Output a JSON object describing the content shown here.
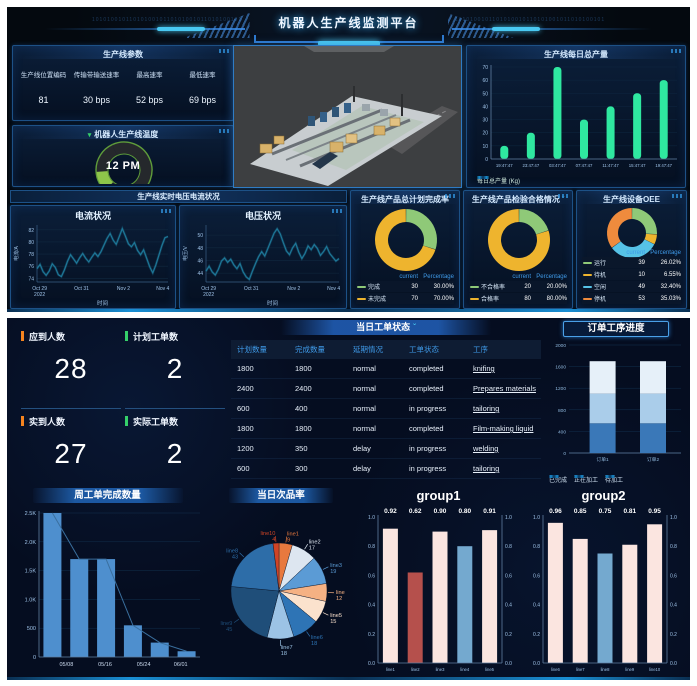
{
  "header": {
    "title": "机器人生产线监测平台",
    "binary_texture": "1010100101101010010110101001011010100101"
  },
  "top": {
    "params": {
      "title": "生产线参数",
      "items": [
        {
          "label": "生产线位置编码",
          "value": "81"
        },
        {
          "label": "传输带输送速率",
          "value": "30 bps"
        },
        {
          "label": "最高速率",
          "value": "52 bps"
        },
        {
          "label": "最低速率",
          "value": "69 bps"
        }
      ]
    },
    "rt_header": "生产线实时电压电流状况"
  },
  "bottom": {
    "stats": [
      {
        "label": "应到人数",
        "value": "28",
        "accent": "#f5841f"
      },
      {
        "label": "计划工单数",
        "value": "2",
        "accent": "#35d06a"
      },
      {
        "label": "实到人数",
        "value": "27",
        "accent": "#f5841f"
      },
      {
        "label": "实际工单数",
        "value": "2",
        "accent": "#35d06a"
      }
    ],
    "table": {
      "title": "当日工单状态",
      "dropdown_glyph": "ˇ",
      "columns": [
        "计划数量",
        "完成数量",
        "延期情况",
        "工单状态",
        "工序"
      ],
      "rows": [
        [
          "1800",
          "1800",
          "normal",
          "completed",
          "knifing"
        ],
        [
          "2400",
          "2400",
          "normal",
          "completed",
          "Prepares materials"
        ],
        [
          "600",
          "400",
          "normal",
          "in progress",
          "tailoring"
        ],
        [
          "1800",
          "1800",
          "normal",
          "completed",
          "Film-making liquid"
        ],
        [
          "1200",
          "350",
          "delay",
          "in progress",
          "welding"
        ],
        [
          "600",
          "300",
          "delay",
          "in progress",
          "tailoring"
        ]
      ]
    }
  },
  "chart_data": [
    {
      "id": "daily_output",
      "type": "bar",
      "title": "生产线每日总产量",
      "categories": [
        "19:47:47",
        "23:47:47",
        "03:47:47",
        "07:47:47",
        "11:47:47",
        "15:47:47",
        "19:47:47"
      ],
      "values": [
        10,
        20,
        70,
        30,
        40,
        50,
        60
      ],
      "ylim": [
        0,
        70
      ],
      "yticks": [
        0,
        10,
        20,
        30,
        40,
        50,
        60,
        70
      ],
      "bar_color": "#2fe8a0",
      "legend": [
        {
          "label": "每日总产量  (Kg)",
          "color": "#2fe8a0"
        }
      ]
    },
    {
      "id": "current_status",
      "type": "line",
      "title": "电流状况",
      "ylabel": "电流/A",
      "xlabel": "时间",
      "yticks": [
        74,
        76,
        78,
        80,
        82
      ],
      "ylim": [
        73.4,
        82.8
      ],
      "line_color": "#1e7899",
      "xticks": [
        {
          "f": 0.02,
          "label": "Oct 29",
          "label2": "2022"
        },
        {
          "f": 0.34,
          "label": "Oct 31"
        },
        {
          "f": 0.66,
          "label": "Nov 2"
        },
        {
          "f": 0.96,
          "label": "Nov 4"
        }
      ],
      "values": [
        75.6,
        76.3,
        75.1,
        74.5,
        75.2,
        76.4,
        75.8,
        74.6,
        74.3,
        75.4,
        76.8,
        77.9,
        77.2,
        76.5,
        77.4,
        78.1,
        77.3,
        76.7,
        77.5,
        78.2,
        77.6,
        78.4,
        79.5,
        80.6,
        81.4,
        80.3,
        79.6,
        80.9,
        82.2,
        81.0,
        79.7,
        79.2,
        79.9,
        78.6,
        77.9,
        78.7,
        77.3,
        75.9,
        74.9,
        76.2,
        77.8,
        79.4,
        80.7,
        80.9
      ]
    },
    {
      "id": "voltage_status",
      "type": "line",
      "title": "电压状况",
      "ylabel": "电压/V",
      "xlabel": "时间",
      "yticks": [
        44,
        46,
        48,
        50
      ],
      "ylim": [
        42.6,
        51.6
      ],
      "line_color": "#1e7899",
      "xticks": [
        {
          "f": 0.02,
          "label": "Oct 29",
          "label2": "2022"
        },
        {
          "f": 0.34,
          "label": "Oct 31"
        },
        {
          "f": 0.66,
          "label": "Nov 2"
        },
        {
          "f": 0.96,
          "label": "Nov 4"
        }
      ],
      "values": [
        44.3,
        45.1,
        44.2,
        43.7,
        44.6,
        45.9,
        46.4,
        45.7,
        46.2,
        45.3,
        44.7,
        45.5,
        44.2,
        43.4,
        43.0,
        44.3,
        45.5,
        46.6,
        47.4,
        46.7,
        47.9,
        49.1,
        50.3,
        51.0,
        50.2,
        48.8,
        47.5,
        46.9,
        48.0,
        48.7,
        47.3,
        46.3,
        47.1,
        48.3,
        47.7,
        48.5,
        47.9,
        46.8,
        47.4,
        48.2,
        47.1,
        46.5,
        45.9,
        46.3
      ]
    },
    {
      "id": "plan_completion",
      "type": "donut",
      "title": "生产线产品总计划完成率",
      "legend_headers": [
        "current",
        "Percentage"
      ],
      "slices": [
        {
          "name": "完成",
          "value": 30,
          "percentage": "30.00%",
          "color": "#8fc978"
        },
        {
          "name": "未完成",
          "value": 70,
          "percentage": "70.00%",
          "color": "#eeb42e"
        }
      ]
    },
    {
      "id": "qc_pass_rate",
      "type": "donut",
      "title": "生产线产品检验合格情况",
      "title_suffix": "ˇ",
      "legend_headers": [
        "current",
        "Percentage"
      ],
      "slices": [
        {
          "name": "不合格率",
          "value": 20,
          "percentage": "20.00%",
          "color": "#8fc978"
        },
        {
          "name": "合格率",
          "value": 80,
          "percentage": "80.00%",
          "color": "#eeb42e"
        }
      ]
    },
    {
      "id": "oee",
      "type": "donut",
      "title": "生产线设备OEE",
      "legend_headers": [
        "current",
        "Percentage"
      ],
      "slices": [
        {
          "name": "运行",
          "value": 39,
          "percentage": "26.02%",
          "color": "#8fc978"
        },
        {
          "name": "待机",
          "value": 10,
          "percentage": "6.55%",
          "color": "#eeb42e"
        },
        {
          "name": "空闲",
          "value": 49,
          "percentage": "32.40%",
          "color": "#56c2e6"
        },
        {
          "name": "停机",
          "value": 53,
          "percentage": "35.03%",
          "color": "#ef8b3d"
        }
      ]
    },
    {
      "id": "temperature_gauge",
      "type": "gauge",
      "title": "机器人生产线温度",
      "marker_glyph": "▾",
      "center_text": "12 PM",
      "ring_color": "#8ec64a"
    },
    {
      "id": "order_progress",
      "type": "stacked_bar",
      "title": "订单工序进度",
      "categories": [
        "订单1",
        "订单2"
      ],
      "ylim": [
        0,
        2000
      ],
      "yticks": [
        0,
        400,
        800,
        1200,
        1600,
        2000
      ],
      "series": [
        {
          "name": "已完成",
          "color": "#3a78b8",
          "values": [
            550,
            550
          ]
        },
        {
          "name": "正在加工",
          "color": "#aacdea",
          "values": [
            550,
            550
          ]
        },
        {
          "name": "待加工",
          "color": "#e6f0f9",
          "values": [
            600,
            600
          ]
        }
      ]
    },
    {
      "id": "weekly_orders",
      "type": "bar",
      "title": "周工单完成数量",
      "values": [
        2500,
        1700,
        1700,
        550,
        250,
        100
      ],
      "ylim": [
        0,
        2500
      ],
      "yticks": [
        0,
        500,
        1000,
        1500,
        2000,
        2500
      ],
      "ytick_labels": [
        "0",
        "500",
        "1.0K",
        "1.5K",
        "2.0K",
        "2.5K"
      ],
      "xticks": [
        {
          "f": 0.17,
          "label": "05/08"
        },
        {
          "f": 0.41,
          "label": "05/16"
        },
        {
          "f": 0.65,
          "label": "05/24"
        },
        {
          "f": 0.88,
          "label": "06/01"
        }
      ],
      "bar_color": "#4e8fce",
      "trend_color": "#3a6f9e"
    },
    {
      "id": "daily_defect_rate",
      "type": "pie",
      "title": "当日次品率",
      "slices": [
        {
          "name": "line1",
          "value": 9,
          "color": "#e8793e"
        },
        {
          "name": "line2",
          "value": 17,
          "color": "#dde6f0"
        },
        {
          "name": "line3",
          "value": 19,
          "color": "#5b9bd5"
        },
        {
          "name": "line",
          "value": 12,
          "color": "#f5b183"
        },
        {
          "name": "line5",
          "value": 15,
          "color": "#fbe2cd"
        },
        {
          "name": "line6",
          "value": 18,
          "color": "#2e74b5"
        },
        {
          "name": "line7",
          "value": 18,
          "color": "#9cc3e5"
        },
        {
          "name": "line9",
          "value": 45,
          "color": "#1f4e79"
        },
        {
          "name": "line8",
          "value": 43,
          "color": "#2d6da8"
        },
        {
          "name": "line10",
          "value": 4,
          "color": "#cf4426"
        }
      ]
    },
    {
      "id": "group1",
      "type": "bar",
      "title": "group1",
      "categories": [
        "line1",
        "line2",
        "line3",
        "line4",
        "line5"
      ],
      "values": [
        0.92,
        0.62,
        0.9,
        0.8,
        0.91
      ],
      "value_labels": [
        "0.92",
        "0.62",
        "0.90",
        "0.80",
        "0.91"
      ],
      "colors": [
        "#fbe5e0",
        "#b5504c",
        "#fbe5e0",
        "#74a9cf",
        "#fbe5e0"
      ],
      "ylim": [
        0,
        1
      ],
      "yticks": [
        0,
        0.2,
        0.4,
        0.6,
        0.8,
        1
      ],
      "ytick_labels": [
        "0.0",
        "0.2",
        "0.4",
        "0.6",
        "0.8",
        "1.0"
      ]
    },
    {
      "id": "group2",
      "type": "bar",
      "title": "group2",
      "categories": [
        "line6",
        "line7",
        "line8",
        "line9",
        "line10"
      ],
      "values": [
        0.96,
        0.85,
        0.75,
        0.81,
        0.95
      ],
      "value_labels": [
        "0.96",
        "0.85",
        "0.75",
        "0.81",
        "0.95"
      ],
      "colors": [
        "#fbe5e0",
        "#fbe5e0",
        "#74a9cf",
        "#fbe5e0",
        "#fbe5e0"
      ],
      "ylim": [
        0,
        1
      ],
      "yticks": [
        0,
        0.2,
        0.4,
        0.6,
        0.8,
        1
      ],
      "ytick_labels": [
        "0.0",
        "0.2",
        "0.4",
        "0.6",
        "0.8",
        "1.0"
      ]
    }
  ]
}
